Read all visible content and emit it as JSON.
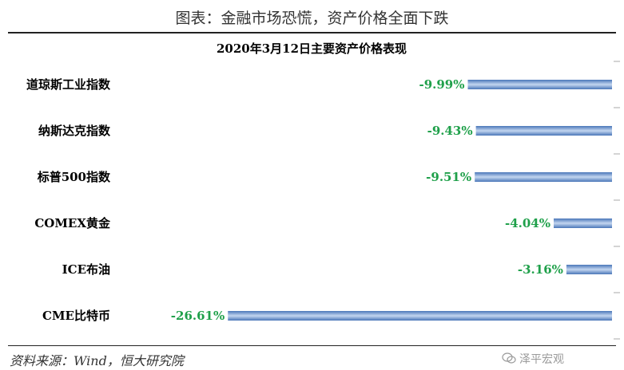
{
  "figure_title": "图表：金融市场恐慌，资产价格全面下跌",
  "source": "资料来源：Wind，恒大研究院",
  "watermark": "泽平宏观",
  "colors": {
    "bar_fill": "#5b86c5",
    "bar_light": "#a9c3e8",
    "value_label": "#1fa04a"
  },
  "chart_data": {
    "type": "bar",
    "orientation": "horizontal",
    "title": "2020年3月12日主要资产价格表现",
    "categories": [
      "道琼斯工业指数",
      "纳斯达克指数",
      "标普500指数",
      "COMEX黄金",
      "ICE布油",
      "CME比特币"
    ],
    "values": [
      -9.99,
      -9.43,
      -9.51,
      -4.04,
      -3.16,
      -26.61
    ],
    "value_labels": [
      "-9.99%",
      "-9.43%",
      "-9.51%",
      "-4.04%",
      "-3.16%",
      "-26.61%"
    ],
    "unit": "%",
    "xlim": [
      -30,
      0
    ],
    "grid": false,
    "legend": "none"
  }
}
